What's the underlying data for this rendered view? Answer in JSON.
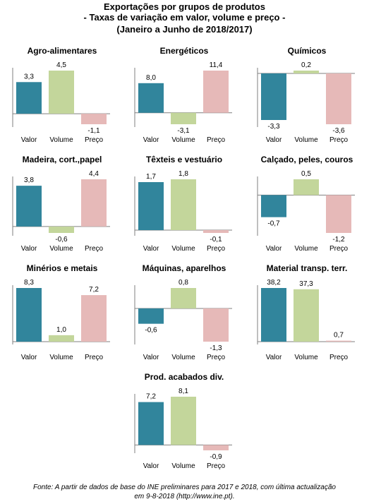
{
  "title": {
    "line1": "Exportações por grupos de produtos",
    "line2": "- Taxas de variação em valor, volume e preço -",
    "line3": "(Janeiro a Junho de 2018/2017)"
  },
  "footer": {
    "line1": "Fonte: A partir de dados de base do INE preliminares para 2017 e 2018, com última actualização",
    "line2": "em 9-8-2018 (http://www.ine.pt)."
  },
  "colors": {
    "valor": "#31859c",
    "volume": "#c3d69b",
    "preco": "#e6b9b8",
    "axis": "#7f7f7f"
  },
  "chart_data": [
    {
      "type": "bar",
      "title": "Agro-alimentares",
      "categories": [
        "Valor",
        "Volume",
        "Preço"
      ],
      "values": [
        3.3,
        4.5,
        -1.1
      ],
      "labels": [
        "3,3",
        "4,5",
        "-1,1"
      ],
      "ylim": [
        -1.1,
        4.5
      ]
    },
    {
      "type": "bar",
      "title": "Energéticos",
      "categories": [
        "Valor",
        "Volume",
        "Preço"
      ],
      "values": [
        8.0,
        -3.1,
        11.4
      ],
      "labels": [
        "8,0",
        "-3,1",
        "11,4"
      ],
      "ylim": [
        -3.1,
        11.4
      ]
    },
    {
      "type": "bar",
      "title": "Químicos",
      "categories": [
        "Valor",
        "Volume",
        "Preço"
      ],
      "values": [
        -3.3,
        0.2,
        -3.6
      ],
      "labels": [
        "-3,3",
        "0,2",
        "-3,6"
      ],
      "ylim": [
        -3.6,
        0.2
      ]
    },
    {
      "type": "bar",
      "title": "Madeira, cort.,papel",
      "categories": [
        "Valor",
        "Volume",
        "Preço"
      ],
      "values": [
        3.8,
        -0.6,
        4.4
      ],
      "labels": [
        "3,8",
        "-0,6",
        "4,4"
      ],
      "ylim": [
        -0.6,
        4.4
      ]
    },
    {
      "type": "bar",
      "title": "Têxteis e vestuário",
      "categories": [
        "Valor",
        "Volume",
        "Preço"
      ],
      "values": [
        1.7,
        1.8,
        -0.1
      ],
      "labels": [
        "1,7",
        "1,8",
        "-0,1"
      ],
      "ylim": [
        -0.1,
        1.8
      ]
    },
    {
      "type": "bar",
      "title": "Calçado,  peles, couros",
      "categories": [
        "Valor",
        "Volume",
        "Preço"
      ],
      "values": [
        -0.7,
        0.5,
        -1.2
      ],
      "labels": [
        "-0,7",
        "0,5",
        "-1,2"
      ],
      "ylim": [
        -1.2,
        0.5
      ]
    },
    {
      "type": "bar",
      "title": "Minérios e metais",
      "categories": [
        "Valor",
        "Volume",
        "Preço"
      ],
      "values": [
        8.3,
        1.0,
        7.2
      ],
      "labels": [
        "8,3",
        "1,0",
        "7,2"
      ],
      "ylim": [
        0,
        8.3
      ]
    },
    {
      "type": "bar",
      "title": "Máquinas,  aparelhos",
      "categories": [
        "Valor",
        "Volume",
        "Preço"
      ],
      "values": [
        -0.6,
        0.8,
        -1.3
      ],
      "labels": [
        "-0,6",
        "0,8",
        "-1,3"
      ],
      "ylim": [
        -1.3,
        0.8
      ]
    },
    {
      "type": "bar",
      "title": "Material  transp. terr.",
      "categories": [
        "Valor",
        "Volume",
        "Preço"
      ],
      "values": [
        38.2,
        37.3,
        0.7
      ],
      "labels": [
        "38,2",
        "37,3",
        "0,7"
      ],
      "ylim": [
        0,
        38.2
      ]
    },
    {
      "type": "bar",
      "title": "Prod. acabados  div.",
      "categories": [
        "Valor",
        "Volume",
        "Preço"
      ],
      "values": [
        7.2,
        8.1,
        -0.9
      ],
      "labels": [
        "7,2",
        "8,1",
        "-0,9"
      ],
      "ylim": [
        -0.9,
        8.1
      ]
    }
  ]
}
